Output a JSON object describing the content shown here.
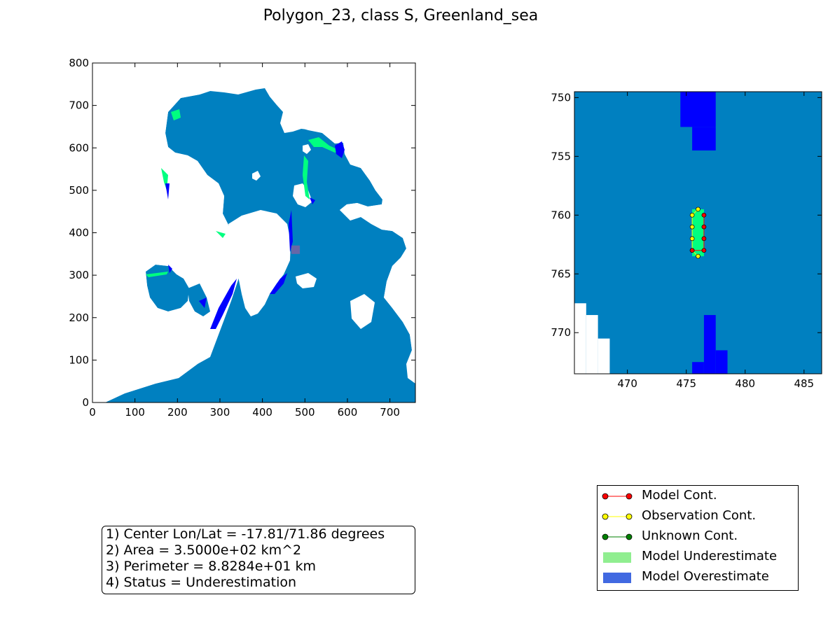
{
  "figure": {
    "title": "Polygon_23, class S, Greenland_sea"
  },
  "colors": {
    "ocean": "#0080c0",
    "land": "#ffffff",
    "model_underestimate_fill": "#00ff80",
    "model_overestimate_fill": "#0000ff",
    "marker_region": "#8060a0",
    "model_cont": "#ff0000",
    "observation_cont": "#ffff00",
    "unknown_cont": "#008000",
    "legend_underestimate": "#90ee90",
    "legend_overestimate": "#4169e1"
  },
  "chart_data": [
    {
      "type": "heatmap",
      "name": "overview-map",
      "xlim": [
        0,
        760
      ],
      "ylim": [
        0,
        800
      ],
      "x_ticks": [
        "0",
        "100",
        "200",
        "300",
        "400",
        "500",
        "600",
        "700"
      ],
      "y_ticks": [
        "0",
        "100",
        "200",
        "300",
        "400",
        "500",
        "600",
        "700",
        "800"
      ],
      "grid": false,
      "highlight_region": {
        "x": [
          468,
          488
        ],
        "y": [
          350,
          370
        ]
      }
    },
    {
      "type": "heatmap",
      "name": "zoom-map",
      "xlim": [
        465.5,
        486.5
      ],
      "ylim": [
        773.5,
        749.5
      ],
      "x_ticks": [
        "470",
        "475",
        "480",
        "485"
      ],
      "y_ticks": [
        "750",
        "755",
        "760",
        "765",
        "770"
      ],
      "grid": false,
      "overestimate_cells": [
        {
          "x": [
            474.5,
            477.5
          ],
          "y": [
            749.5,
            752.5
          ]
        },
        {
          "x": [
            475.5,
            477.5
          ],
          "y": [
            752.5,
            754.5
          ]
        },
        {
          "x": [
            476.5,
            477.5
          ],
          "y": [
            768.5,
            773.5
          ]
        },
        {
          "x": [
            477.5,
            478.5
          ],
          "y": [
            771.5,
            773.5
          ]
        },
        {
          "x": [
            475.5,
            476.5
          ],
          "y": [
            772.5,
            773.5
          ]
        }
      ],
      "land_cells": [
        {
          "x": [
            465.5,
            466.5
          ],
          "y": [
            767.5,
            773.5
          ]
        },
        {
          "x": [
            466.5,
            467.5
          ],
          "y": [
            768.5,
            773.5
          ]
        },
        {
          "x": [
            467.5,
            468.5
          ],
          "y": [
            770.5,
            773.5
          ]
        }
      ],
      "underestimate_cells": [
        {
          "x": [
            475.5,
            476.5
          ],
          "y": [
            759.5,
            763.5
          ]
        }
      ],
      "model_contour": [
        [
          476.5,
          760
        ],
        [
          476.5,
          761
        ],
        [
          476.5,
          762
        ],
        [
          476.5,
          763
        ],
        [
          475.5,
          763
        ]
      ],
      "observation_contour": [
        [
          476,
          759.5
        ],
        [
          475.5,
          760
        ],
        [
          475.5,
          761
        ],
        [
          475.5,
          762
        ],
        [
          475.5,
          763
        ],
        [
          476,
          763.5
        ]
      ]
    }
  ],
  "info": {
    "line1": "1) Center Lon/Lat = -17.81/71.86 degrees",
    "line2": "2) Area = 3.5000e+02 km^2",
    "line3": "3) Perimeter = 8.8284e+01 km",
    "line4": "4) Status = Underestimation"
  },
  "legend": {
    "items": [
      {
        "label": "Model Cont.",
        "kind": "line",
        "color": "#ff0000"
      },
      {
        "label": "Observation Cont.",
        "kind": "line",
        "color": "#ffff00"
      },
      {
        "label": "Unknown Cont.",
        "kind": "line",
        "color": "#008000"
      },
      {
        "label": "Model Underestimate",
        "kind": "patch",
        "color": "#90ee90"
      },
      {
        "label": "Model Overestimate",
        "kind": "patch",
        "color": "#4169e1"
      }
    ]
  }
}
